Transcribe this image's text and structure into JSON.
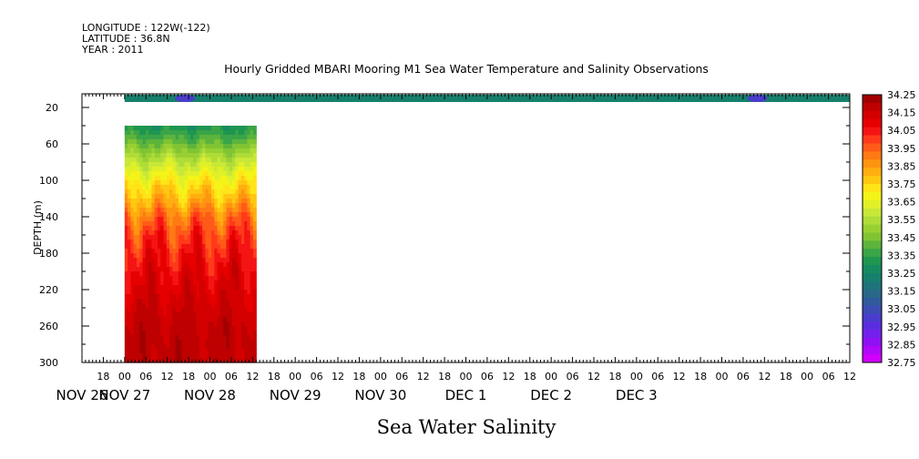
{
  "header": {
    "longitude": "LONGITUDE : 122W(-122)",
    "latitude": "LATITUDE : 36.8N",
    "year": "YEAR : 2011"
  },
  "chart_data": {
    "type": "heatmap",
    "title": "Hourly Gridded MBARI Mooring M1 Sea Water Temperature and Salinity Observations",
    "xlabel": "Sea Water Salinity",
    "ylabel": "DEPTH (m)",
    "ylim": [
      300,
      5
    ],
    "y_ticks": [
      20,
      60,
      100,
      140,
      180,
      220,
      260,
      300
    ],
    "x_hours_range": [
      -12,
      204
    ],
    "x_hour_labels": [
      "18",
      "00",
      "06",
      "12",
      "18",
      "00",
      "06",
      "12",
      "18",
      "00",
      "06",
      "12",
      "18",
      "00",
      "06",
      "12",
      "18",
      "00",
      "06",
      "12",
      "18",
      "00",
      "06",
      "12",
      "18",
      "00",
      "06",
      "12",
      "18",
      "00",
      "06",
      "12",
      "18",
      "00",
      "06",
      "12"
    ],
    "x_hour_positions": [
      -6,
      0,
      6,
      12,
      18,
      24,
      30,
      36,
      42,
      48,
      54,
      60,
      66,
      72,
      78,
      84,
      90,
      96,
      102,
      108,
      114,
      120,
      126,
      132,
      138,
      144,
      150,
      156,
      162,
      168,
      174,
      180,
      186,
      192,
      198,
      204
    ],
    "x_date_labels": [
      "NOV 26",
      "NOV 27",
      "NOV 28",
      "NOV 29",
      "NOV 30",
      "DEC  1",
      "DEC  2",
      "DEC  3"
    ],
    "x_date_positions": [
      -12,
      0,
      24,
      48,
      72,
      96,
      120,
      144
    ],
    "colorbar": {
      "labels": [
        "34.25",
        "34.15",
        "34.05",
        "33.95",
        "33.85",
        "33.75",
        "33.65",
        "33.55",
        "33.45",
        "33.35",
        "33.25",
        "33.15",
        "33.05",
        "32.95",
        "32.85",
        "32.75"
      ],
      "colors": [
        "#a00000",
        "#be0000",
        "#d40000",
        "#e60000",
        "#f41414",
        "#ff3a1a",
        "#ff5a18",
        "#ff7a14",
        "#ff9410",
        "#ffae10",
        "#ffc810",
        "#ffe418",
        "#f4f418",
        "#e0f028",
        "#c8e838",
        "#b0dc38",
        "#98d034",
        "#80c434",
        "#5cb43c",
        "#3aa448",
        "#1e9650",
        "#168a60",
        "#16806c",
        "#1e7478",
        "#286888",
        "#305a9c",
        "#3c4cb4",
        "#4a3ccc",
        "#5c2ce0",
        "#7420ec",
        "#9010f4",
        "#b008f8",
        "#d000fc"
      ]
    },
    "surface_band": {
      "depth": 10,
      "hours_start": 0,
      "hours_end": 204,
      "value": 33.25,
      "fresh_spots_hours": [
        17,
        178
      ]
    },
    "profile": {
      "hours_start": 0,
      "hours_end": 37,
      "depth_start": 40,
      "depth_end": 300,
      "depths": [
        40,
        60,
        80,
        100,
        120,
        140,
        160,
        180,
        200,
        220,
        240,
        260,
        280,
        300
      ],
      "mean_values": [
        33.3,
        33.43,
        33.58,
        33.7,
        33.8,
        33.92,
        34.0,
        34.05,
        34.09,
        34.12,
        34.15,
        34.17,
        34.18,
        34.18
      ]
    }
  }
}
